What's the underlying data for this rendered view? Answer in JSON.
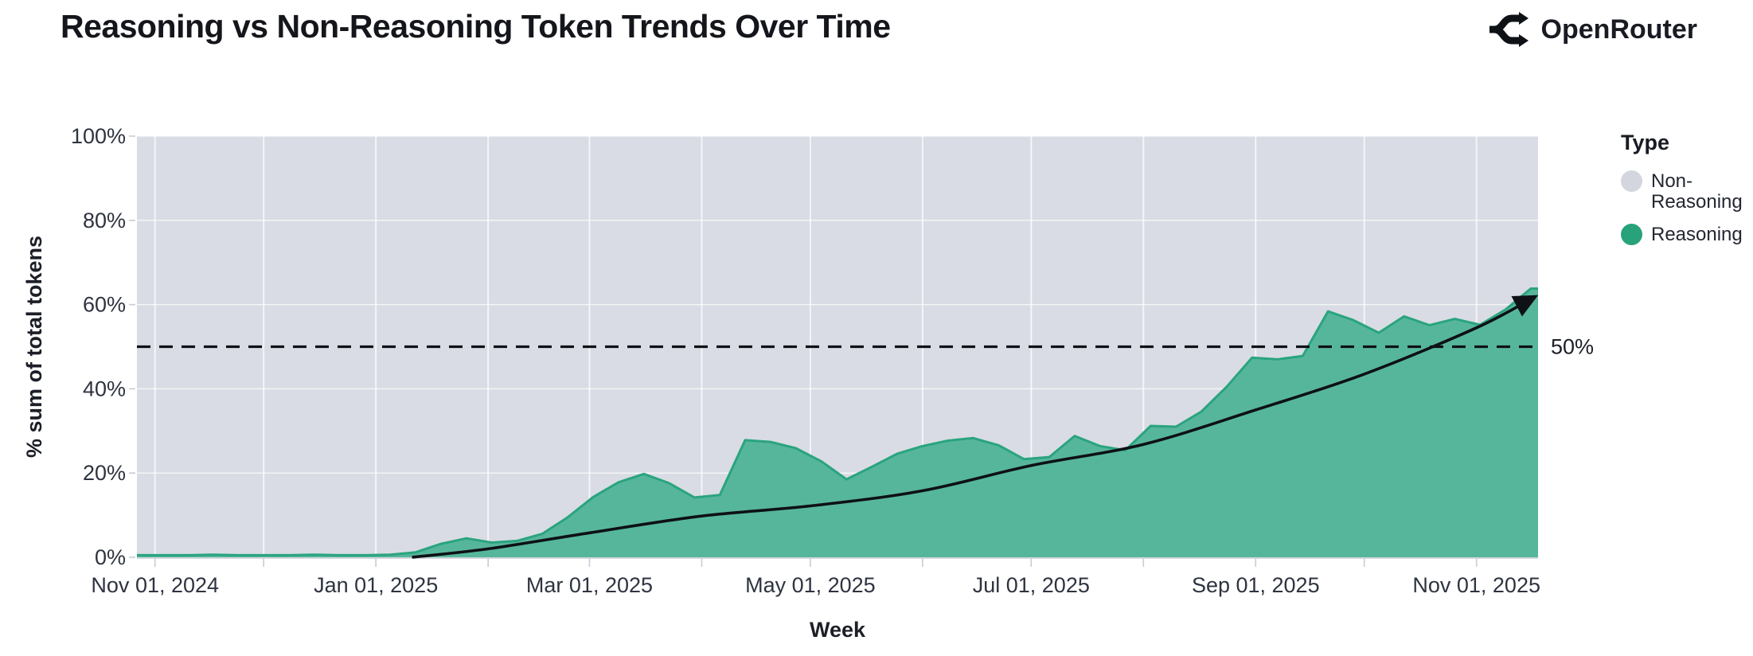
{
  "header": {
    "title": "Reasoning vs Non-Reasoning Token Trends Over Time",
    "brand": "OpenRouter"
  },
  "legend": {
    "title": "Type",
    "items": [
      {
        "label": "Non-Reasoning",
        "color": "#d3d6df"
      },
      {
        "label": "Reasoning",
        "color": "#27a27b"
      }
    ]
  },
  "chart_data": {
    "type": "area",
    "stacked_percent": true,
    "title": "Reasoning vs Non-Reasoning Token Trends Over Time",
    "xlabel": "Week",
    "ylabel": "% sum of total tokens",
    "x_range": [
      "2024-10-27",
      "2025-11-18"
    ],
    "ylim": [
      0,
      100
    ],
    "grid": true,
    "legend_position": "right",
    "x_ticks": [
      {
        "date": "2024-11-01",
        "label": "Nov 01, 2024"
      },
      {
        "date": "2025-01-01",
        "label": "Jan 01, 2025"
      },
      {
        "date": "2025-03-01",
        "label": "Mar 01, 2025"
      },
      {
        "date": "2025-05-01",
        "label": "May 01, 2025"
      },
      {
        "date": "2025-07-01",
        "label": "Jul 01, 2025"
      },
      {
        "date": "2025-09-01",
        "label": "Sep 01, 2025"
      },
      {
        "date": "2025-11-01",
        "label": "Nov 01, 2025"
      }
    ],
    "y_ticks": [
      {
        "value": 0,
        "label": "0%"
      },
      {
        "value": 20,
        "label": "20%"
      },
      {
        "value": 40,
        "label": "40%"
      },
      {
        "value": 60,
        "label": "60%"
      },
      {
        "value": 80,
        "label": "80%"
      },
      {
        "value": 100,
        "label": "100%"
      }
    ],
    "series": [
      {
        "name": "Reasoning",
        "fill_color": "#56b69c",
        "stroke_color": "#2aa47e",
        "x": [
          "2024-10-27",
          "2024-11-03",
          "2024-11-10",
          "2024-11-17",
          "2024-11-24",
          "2024-12-01",
          "2024-12-08",
          "2024-12-15",
          "2024-12-22",
          "2024-12-29",
          "2025-01-05",
          "2025-01-12",
          "2025-01-19",
          "2025-01-26",
          "2025-02-02",
          "2025-02-09",
          "2025-02-16",
          "2025-02-23",
          "2025-03-02",
          "2025-03-09",
          "2025-03-16",
          "2025-03-23",
          "2025-03-30",
          "2025-04-06",
          "2025-04-13",
          "2025-04-20",
          "2025-04-27",
          "2025-05-04",
          "2025-05-11",
          "2025-05-18",
          "2025-05-25",
          "2025-06-01",
          "2025-06-08",
          "2025-06-15",
          "2025-06-22",
          "2025-06-29",
          "2025-07-06",
          "2025-07-13",
          "2025-07-20",
          "2025-07-27",
          "2025-08-03",
          "2025-08-10",
          "2025-08-17",
          "2025-08-24",
          "2025-08-31",
          "2025-09-07",
          "2025-09-14",
          "2025-09-21",
          "2025-09-28",
          "2025-10-05",
          "2025-10-12",
          "2025-10-19",
          "2025-10-26",
          "2025-11-02",
          "2025-11-09",
          "2025-11-16"
        ],
        "values": [
          0.5,
          0.5,
          0.5,
          0.6,
          0.5,
          0.5,
          0.5,
          0.6,
          0.5,
          0.5,
          0.6,
          1.2,
          3.2,
          4.5,
          3.5,
          3.9,
          5.6,
          9.5,
          14.3,
          17.8,
          19.8,
          17.6,
          14.2,
          14.8,
          27.8,
          27.4,
          25.9,
          22.8,
          18.5,
          21.5,
          24.6,
          26.4,
          27.7,
          28.3,
          26.6,
          23.3,
          23.8,
          28.8,
          26.4,
          25.4,
          31.2,
          31.0,
          34.6,
          40.5,
          47.4,
          47.0,
          47.8,
          58.4,
          56.3,
          53.3,
          57.2,
          55.1,
          56.6,
          55.2,
          58.8,
          63.8
        ]
      },
      {
        "name": "Non-Reasoning",
        "fill_color": "#d9dce4",
        "values_note": "remainder to 100% (background of stacked percent area)"
      }
    ],
    "annotations": {
      "fifty_line": {
        "y": 50,
        "label": "50%",
        "style": "dashed-black"
      },
      "trend_arrow": {
        "points": [
          [
            "2025-01-11",
            0
          ],
          [
            "2025-02-01",
            2.0
          ],
          [
            "2025-03-01",
            5.8
          ],
          [
            "2025-04-01",
            9.8
          ],
          [
            "2025-05-01",
            12.2
          ],
          [
            "2025-06-01",
            15.8
          ],
          [
            "2025-07-01",
            21.8
          ],
          [
            "2025-08-01",
            26.8
          ],
          [
            "2025-09-01",
            35.0
          ],
          [
            "2025-10-01",
            43.5
          ],
          [
            "2025-11-01",
            54.5
          ],
          [
            "2025-11-17",
            61.8
          ]
        ]
      }
    },
    "colors": {
      "plot_background": "#d9dce4",
      "gridline": "rgba(255,255,255,0.7)",
      "axis_tick": "#c9ccd5",
      "tick_label": "#2e3340",
      "axis_title": "#1c1f27",
      "annotation_black": "#0e1116"
    }
  }
}
